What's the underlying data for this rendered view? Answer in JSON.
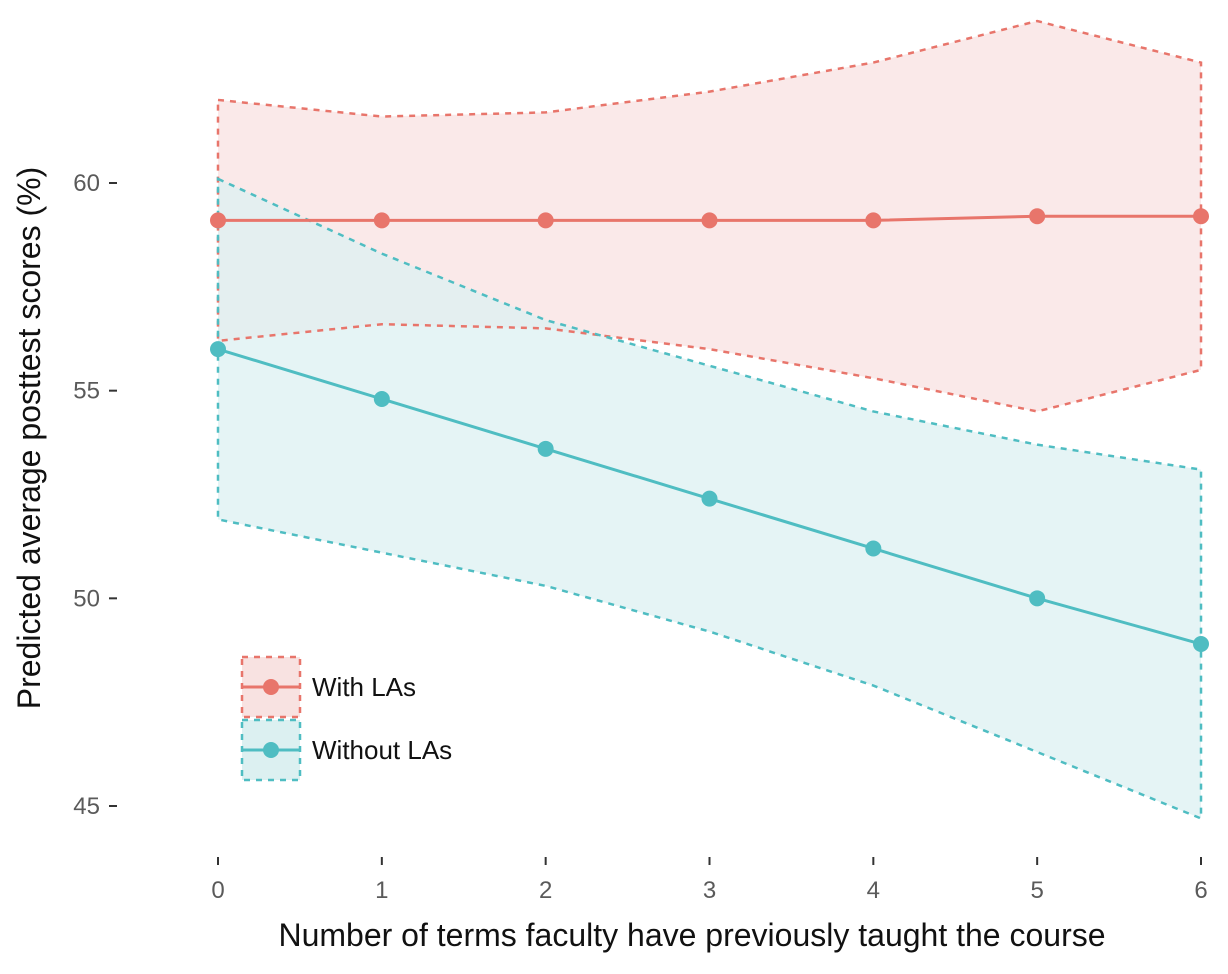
{
  "chart_data": {
    "type": "line",
    "title": "",
    "xlabel": "Number of terms faculty have previously taught the course",
    "ylabel": "Predicted average posttest scores (%)",
    "x": [
      0,
      1,
      2,
      3,
      4,
      5,
      6
    ],
    "xlim": [
      0,
      6
    ],
    "ylim": [
      45,
      60
    ],
    "xticks": [
      "0",
      "1",
      "2",
      "3",
      "4",
      "5",
      "6"
    ],
    "yticks": [
      "45",
      "50",
      "55",
      "60"
    ],
    "grid": false,
    "legend_position": "bottom-left",
    "series": [
      {
        "name": "With LAs",
        "color": "#e8756b",
        "fill": "#f8e2e1",
        "values": [
          59.1,
          59.1,
          59.1,
          59.1,
          59.1,
          59.2,
          59.2
        ],
        "ci_upper": [
          62.0,
          61.6,
          61.7,
          62.2,
          62.9,
          63.9,
          62.9
        ],
        "ci_lower": [
          56.2,
          56.6,
          56.5,
          56.0,
          55.3,
          54.5,
          55.5
        ]
      },
      {
        "name": "Without LAs",
        "color": "#4fbdc2",
        "fill": "#dcf0f1",
        "values": [
          56.0,
          54.8,
          53.6,
          52.4,
          51.2,
          50.0,
          48.9
        ],
        "ci_upper": [
          60.1,
          58.3,
          56.7,
          55.6,
          54.5,
          53.7,
          53.1
        ],
        "ci_lower": [
          51.9,
          51.1,
          50.3,
          49.2,
          47.9,
          46.3,
          44.7
        ]
      }
    ]
  }
}
